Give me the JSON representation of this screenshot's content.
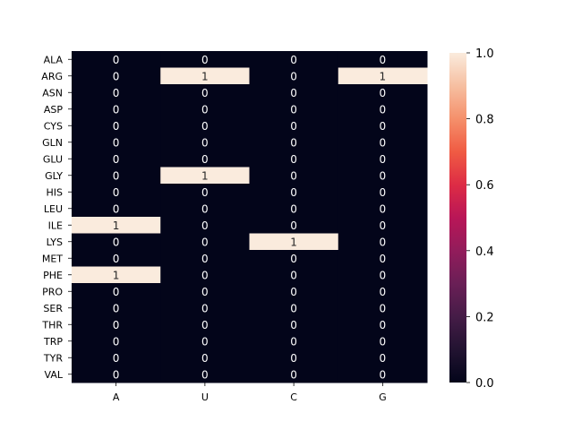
{
  "chart_data": {
    "type": "heatmap",
    "title": "",
    "xlabel": "",
    "ylabel": "",
    "x_categories": [
      "A",
      "U",
      "C",
      "G"
    ],
    "y_categories": [
      "ALA",
      "ARG",
      "ASN",
      "ASP",
      "CYS",
      "GLN",
      "GLU",
      "GLY",
      "HIS",
      "LEU",
      "ILE",
      "LYS",
      "MET",
      "PHE",
      "PRO",
      "SER",
      "THR",
      "TRP",
      "TYR",
      "VAL"
    ],
    "values": [
      [
        0,
        0,
        0,
        0
      ],
      [
        0,
        1,
        0,
        1
      ],
      [
        0,
        0,
        0,
        0
      ],
      [
        0,
        0,
        0,
        0
      ],
      [
        0,
        0,
        0,
        0
      ],
      [
        0,
        0,
        0,
        0
      ],
      [
        0,
        0,
        0,
        0
      ],
      [
        0,
        1,
        0,
        0
      ],
      [
        0,
        0,
        0,
        0
      ],
      [
        0,
        0,
        0,
        0
      ],
      [
        1,
        0,
        0,
        0
      ],
      [
        0,
        0,
        1,
        0
      ],
      [
        0,
        0,
        0,
        0
      ],
      [
        1,
        0,
        0,
        0
      ],
      [
        0,
        0,
        0,
        0
      ],
      [
        0,
        0,
        0,
        0
      ],
      [
        0,
        0,
        0,
        0
      ],
      [
        0,
        0,
        0,
        0
      ],
      [
        0,
        0,
        0,
        0
      ],
      [
        0,
        0,
        0,
        0
      ]
    ],
    "annotations": true,
    "colorbar": {
      "range": [
        0,
        1
      ],
      "ticks": [
        "0.0",
        "0.2",
        "0.4",
        "0.6",
        "0.8",
        "1.0"
      ],
      "colormap": "rocket",
      "low_color": "#03051a",
      "high_color": "#faebdd"
    },
    "grid": false
  }
}
